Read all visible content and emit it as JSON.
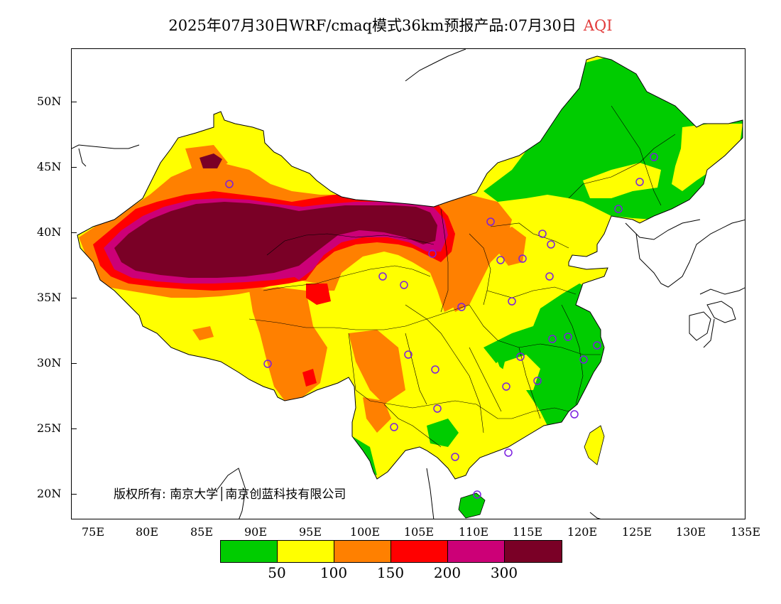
{
  "title": {
    "text": "2025年07月30日WRF/cmaq模式36km预报产品:07月30日",
    "variable": "AQI"
  },
  "axes": {
    "lat_labels": [
      "50N",
      "45N",
      "40N",
      "35N",
      "30N",
      "25N",
      "20N"
    ],
    "lon_labels": [
      "75E",
      "80E",
      "85E",
      "90E",
      "95E",
      "100E",
      "105E",
      "110E",
      "115E",
      "120E",
      "125E",
      "130E",
      "135E"
    ]
  },
  "copyright": "版权所有: 南京大学│南京创蓝科技有限公司",
  "legend": {
    "colors": [
      "#00cc00",
      "#ffff00",
      "#ff8000",
      "#ff0000",
      "#cc0077",
      "#7a0026"
    ],
    "labels": [
      "50",
      "100",
      "150",
      "200",
      "300"
    ]
  },
  "map": {
    "lon_range": [
      73,
      135
    ],
    "lat_range": [
      18,
      54
    ],
    "background": "#ffffff"
  }
}
